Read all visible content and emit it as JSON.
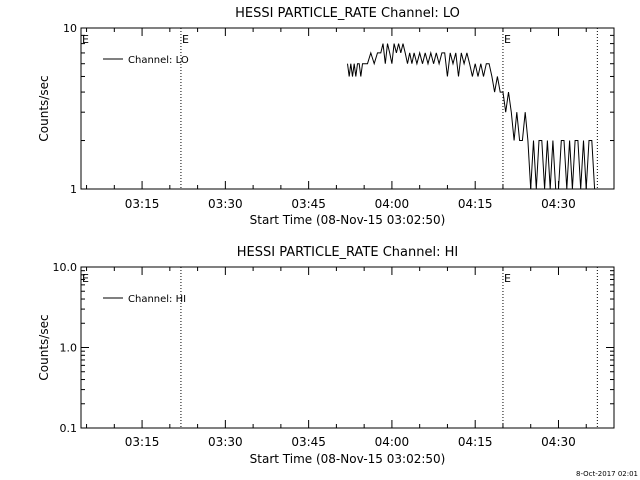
{
  "footer": {
    "timestamp": "8-Oct-2017 02:01"
  },
  "chart_data": [
    {
      "type": "line",
      "title": "HESSI PARTICLE_RATE Channel: LO",
      "xlabel": "Start Time (08-Nov-15 03:02:50)",
      "ylabel": "Counts/sec",
      "yscale": "log",
      "ylim": [
        1,
        10
      ],
      "ytick_labels": [
        "10",
        "1"
      ],
      "xlim": [
        "03:04",
        "04:40"
      ],
      "xtick_labels": [
        "03:15",
        "03:30",
        "03:45",
        "04:00",
        "04:15",
        "04:30"
      ],
      "legend": {
        "position": "top-left",
        "label": "Channel: LO"
      },
      "markers": [
        {
          "time": "03:22",
          "label": "E"
        },
        {
          "time": "04:20",
          "label": "E"
        },
        {
          "time": "04:37",
          "label": ""
        },
        {
          "time": "03:04",
          "label": "E"
        }
      ],
      "series": [
        {
          "name": "Channel: LO",
          "x": [
            "03:52.0",
            "03:52.3",
            "03:52.6",
            "03:52.9",
            "03:53.2",
            "03:53.5",
            "03:53.8",
            "03:54.1",
            "03:54.4",
            "03:54.7",
            "03:55.0",
            "03:55.6",
            "03:56.2",
            "03:56.8",
            "03:57.4",
            "03:58.0",
            "03:58.4",
            "03:58.8",
            "03:59.2",
            "03:59.6",
            "04:00.0",
            "04:00.4",
            "04:00.8",
            "04:01.2",
            "04:01.6",
            "04:02.0",
            "04:02.4",
            "04:02.8",
            "04:03.2",
            "04:03.6",
            "04:04.0",
            "04:04.5",
            "04:05.0",
            "04:05.5",
            "04:06.0",
            "04:06.5",
            "04:07.0",
            "04:07.5",
            "04:08.0",
            "04:08.5",
            "04:09.0",
            "04:09.5",
            "04:10.0",
            "04:10.5",
            "04:11.0",
            "04:11.5",
            "04:12.0",
            "04:12.5",
            "04:13.0",
            "04:13.5",
            "04:14.0",
            "04:14.5",
            "04:15.0",
            "04:15.5",
            "04:16.0",
            "04:16.5",
            "04:17.0",
            "04:17.5",
            "04:18.0",
            "04:18.5",
            "04:19.0",
            "04:19.5",
            "04:20.0",
            "04:20.5",
            "04:21.0",
            "04:21.5",
            "04:22.0",
            "04:22.5",
            "04:23.0",
            "04:23.5",
            "04:24.0",
            "04:24.5",
            "04:25.0",
            "04:25.5",
            "04:26.0",
            "04:26.5",
            "04:27.0",
            "04:27.5",
            "04:28.0",
            "04:28.5",
            "04:29.0",
            "04:29.5",
            "04:30.0",
            "04:30.5",
            "04:31.0",
            "04:31.5",
            "04:32.0",
            "04:32.5",
            "04:33.0",
            "04:33.5",
            "04:34.0",
            "04:34.5",
            "04:35.0",
            "04:35.5",
            "04:36.0",
            "04:36.5",
            "04:37.0"
          ],
          "values": [
            6,
            5,
            6,
            5,
            6,
            5,
            6,
            6,
            5,
            6,
            6,
            6,
            7,
            6,
            7,
            7,
            8,
            6,
            8,
            7,
            6,
            8,
            7,
            8,
            7,
            8,
            7,
            6,
            7,
            6,
            7,
            6,
            7,
            6,
            7,
            6,
            7,
            6,
            7,
            6,
            7,
            7,
            5,
            7,
            6,
            7,
            5,
            7,
            6,
            7,
            6,
            5,
            6,
            5,
            6,
            5,
            6,
            6,
            5,
            4,
            5,
            4,
            4,
            3,
            4,
            3,
            2,
            3,
            2,
            2,
            3,
            2,
            1,
            2,
            1,
            2,
            2,
            1,
            2,
            1,
            2,
            1,
            1,
            2,
            2,
            1,
            2,
            1,
            2,
            2,
            1,
            2,
            1,
            2,
            2,
            1,
            1
          ]
        }
      ]
    },
    {
      "type": "line",
      "title": "HESSI PARTICLE_RATE Channel: HI",
      "xlabel": "Start Time (08-Nov-15 03:02:50)",
      "ylabel": "Counts/sec",
      "yscale": "log",
      "ylim": [
        0.1,
        10
      ],
      "ytick_labels": [
        "10.0",
        "1.0",
        "0.1"
      ],
      "xlim": [
        "03:04",
        "04:40"
      ],
      "xtick_labels": [
        "03:15",
        "03:30",
        "03:45",
        "04:00",
        "04:15",
        "04:30"
      ],
      "legend": {
        "position": "top-left",
        "label": "Channel: HI"
      },
      "markers": [
        {
          "time": "03:22",
          "label": ""
        },
        {
          "time": "04:20",
          "label": "E"
        },
        {
          "time": "04:37",
          "label": ""
        },
        {
          "time": "03:04",
          "label": "E"
        }
      ],
      "series": [
        {
          "name": "Channel: HI",
          "x": [],
          "values": []
        }
      ]
    }
  ]
}
